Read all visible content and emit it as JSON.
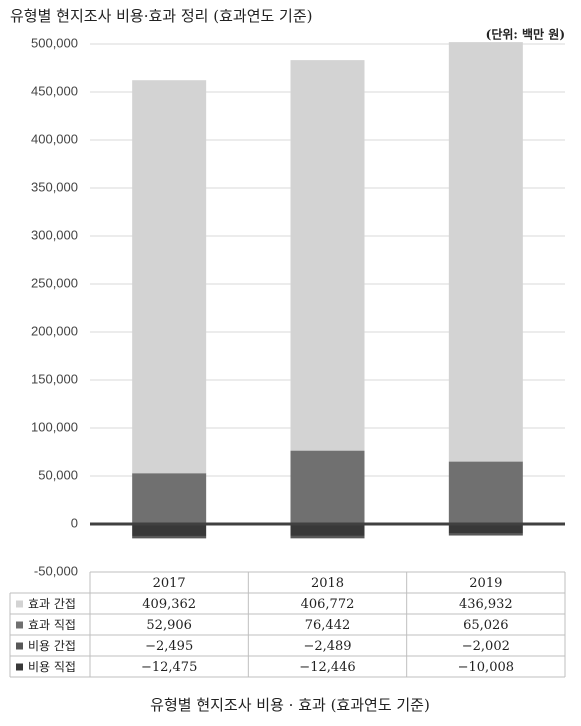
{
  "chart_data": {
    "type": "stacked_bar",
    "title": "유형별 현지조사 비용·효과 정리 (효과연도 기준)",
    "unit": "(단위: 백만 원)",
    "caption": "유형별 현지조사 비용 · 효과 (효과연도 기준)",
    "categories": [
      "2017",
      "2018",
      "2019"
    ],
    "series": [
      {
        "name": "효과 간접",
        "color": "#d3d3d3",
        "values": [
          409362,
          406772,
          436932
        ],
        "value_labels": [
          "409,362",
          "406,772",
          "436,932"
        ]
      },
      {
        "name": "효과 직접",
        "color": "#707070",
        "values": [
          52906,
          76442,
          65026
        ],
        "value_labels": [
          "52,906",
          "76,442",
          "65,026"
        ]
      },
      {
        "name": "비용 간접",
        "color": "#585858",
        "values": [
          -2495,
          -2489,
          -2002
        ],
        "value_labels": [
          "−2,495",
          "−2,489",
          "−2,002"
        ]
      },
      {
        "name": "비용 직접",
        "color": "#383838",
        "values": [
          -12475,
          -12446,
          -10008
        ],
        "value_labels": [
          "−12,475",
          "−12,446",
          "−10,008"
        ]
      }
    ],
    "ylim": [
      -50000,
      500000
    ],
    "yticks": [
      {
        "value": -50000,
        "label": "-50,000"
      },
      0,
      {
        "value": 50000,
        "label": "50,000"
      },
      {
        "value": 100000,
        "label": "100,000"
      },
      {
        "value": 150000,
        "label": "150,000"
      },
      {
        "value": 200000,
        "label": "200,000"
      },
      {
        "value": 250000,
        "label": "250,000"
      },
      {
        "value": 300000,
        "label": "300,000"
      },
      {
        "value": 350000,
        "label": "350,000"
      },
      {
        "value": 400000,
        "label": "400,000"
      },
      {
        "value": 450000,
        "label": "450,000"
      },
      {
        "value": 500000,
        "label": "500,000"
      }
    ],
    "grid": true
  }
}
